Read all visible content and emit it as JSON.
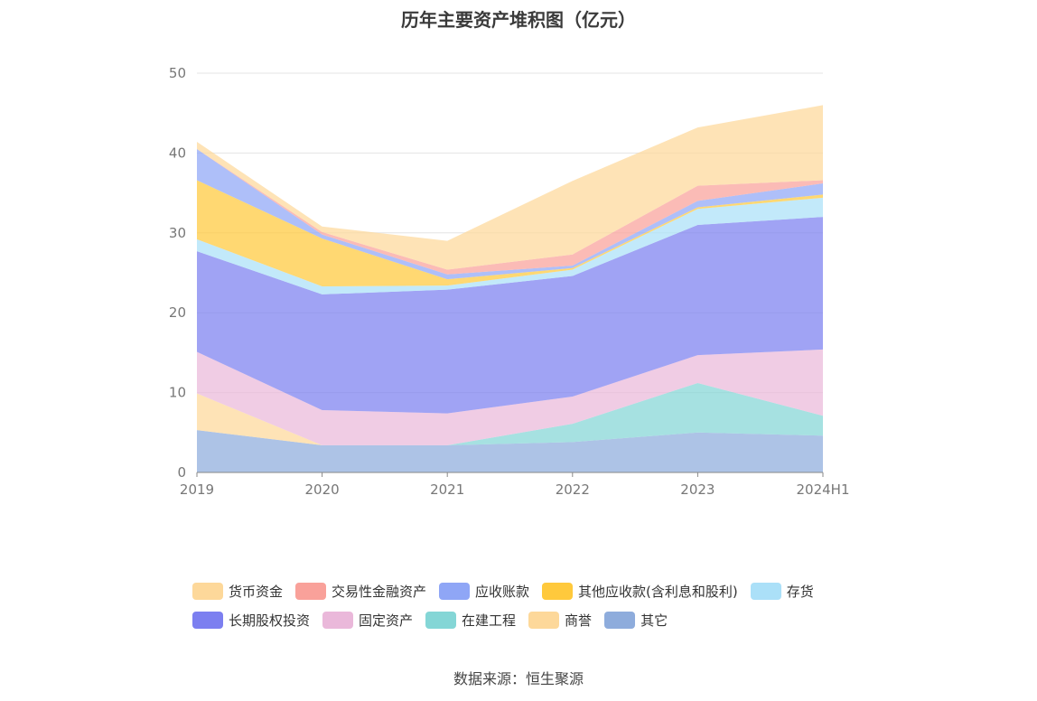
{
  "title": "历年主要资产堆积图（亿元）",
  "source": "数据来源：恒生聚源",
  "chart_data": {
    "type": "area",
    "stacked": true,
    "categories": [
      "2019",
      "2020",
      "2021",
      "2022",
      "2023",
      "2024H1"
    ],
    "ylim": [
      0,
      50
    ],
    "yticks": [
      0,
      10,
      20,
      30,
      40,
      50
    ],
    "grid": true,
    "legend_position": "bottom",
    "series": [
      {
        "name": "其它",
        "color": "#8eacdc",
        "values": [
          5.3,
          3.4,
          3.4,
          3.8,
          5.0,
          4.6
        ]
      },
      {
        "name": "商誉",
        "color": "#fdd89a",
        "values": [
          4.6,
          0.0,
          0.0,
          0.0,
          0.0,
          0.0
        ]
      },
      {
        "name": "在建工程",
        "color": "#84d6d6",
        "values": [
          0.0,
          0.0,
          0.0,
          2.3,
          6.2,
          2.5
        ]
      },
      {
        "name": "固定资产",
        "color": "#eab8da",
        "values": [
          5.2,
          4.4,
          4.0,
          3.4,
          3.5,
          8.3
        ]
      },
      {
        "name": "长期股权投资",
        "color": "#7c7ff0",
        "values": [
          12.6,
          14.5,
          15.5,
          15.1,
          16.3,
          16.6
        ]
      },
      {
        "name": "存货",
        "color": "#abe0f8",
        "values": [
          1.5,
          1.0,
          0.5,
          0.8,
          2.0,
          2.4
        ]
      },
      {
        "name": "其他应收款(含利息和股利)",
        "color": "#ffc93c",
        "values": [
          7.4,
          6.0,
          0.8,
          0.2,
          0.2,
          0.4
        ]
      },
      {
        "name": "应收账款",
        "color": "#8fa6f6",
        "values": [
          3.9,
          0.5,
          0.6,
          0.3,
          0.8,
          1.4
        ]
      },
      {
        "name": "交易性金融资产",
        "color": "#f9a19a",
        "values": [
          0.0,
          0.3,
          0.6,
          1.4,
          1.9,
          0.4
        ]
      },
      {
        "name": "货币资金",
        "color": "#fdd89a",
        "values": [
          0.9,
          0.7,
          3.6,
          9.2,
          7.3,
          9.4
        ]
      }
    ]
  },
  "legend": {
    "rows": [
      [
        {
          "label": "货币资金",
          "color": "#fdd89a"
        },
        {
          "label": "交易性金融资产",
          "color": "#f9a19a"
        },
        {
          "label": "应收账款",
          "color": "#8fa6f6"
        },
        {
          "label": "其他应收款(含利息和股利)",
          "color": "#ffc93c"
        },
        {
          "label": "存货",
          "color": "#abe0f8"
        }
      ],
      [
        {
          "label": "长期股权投资",
          "color": "#7c7ff0"
        },
        {
          "label": "固定资产",
          "color": "#eab8da"
        },
        {
          "label": "在建工程",
          "color": "#84d6d6"
        },
        {
          "label": "商誉",
          "color": "#fdd89a"
        },
        {
          "label": "其它",
          "color": "#8eacdc"
        }
      ]
    ]
  }
}
